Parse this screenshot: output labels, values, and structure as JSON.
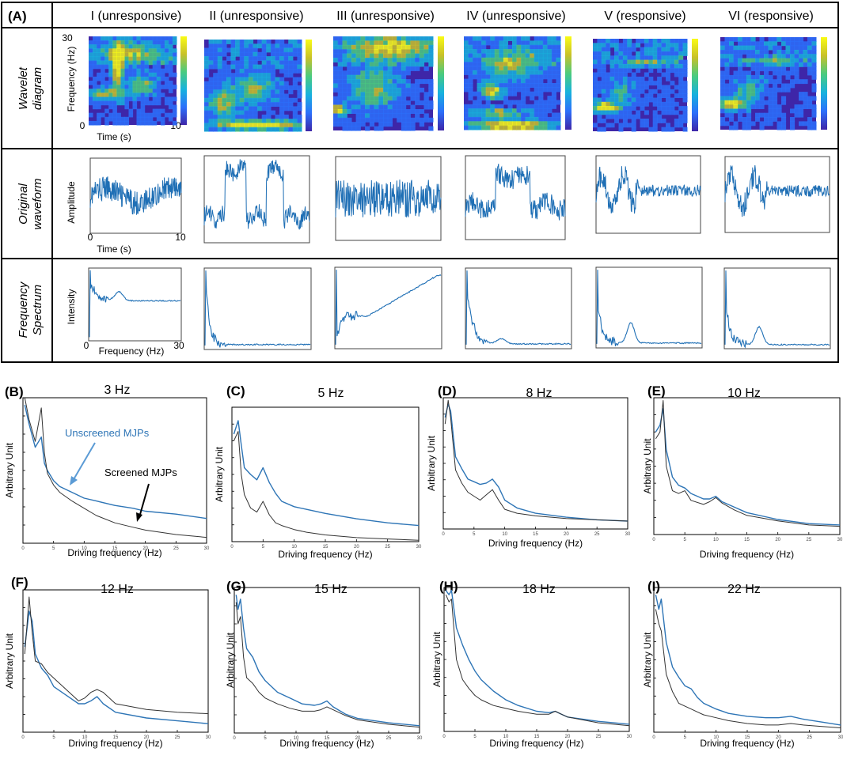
{
  "panel_a": {
    "label": "(A)",
    "columns": [
      "I (unresponsive)",
      "II (unresponsive)",
      "III (unresponsive)",
      "IV (unresponsive)",
      "V (responsive)",
      "VI (responsive)"
    ],
    "rows": [
      {
        "label_line1": "Wavelet",
        "label_line2": "diagram"
      },
      {
        "label_line1": "Original",
        "label_line2": "waveform"
      },
      {
        "label_line1": "Frequency",
        "label_line2": "Spectrum"
      }
    ],
    "wavelet_axes": {
      "ylabel": "Frequency (Hz)",
      "y_top": "30",
      "y_bottom": "0",
      "xlabel": "Time (s)",
      "x_right": "10"
    },
    "waveform_axes": {
      "ylabel": "Amplitude",
      "x_left": "0",
      "x_right": "10",
      "xlabel": "Time (s)"
    },
    "spectrum_axes": {
      "ylabel": "Intensity",
      "x_left": "0",
      "x_right": "30",
      "xlabel": "Frequency (Hz)"
    },
    "colormap": [
      "#3e26a8",
      "#2c70fb",
      "#17b2dd",
      "#4acb7f",
      "#c8c129",
      "#f9fb15"
    ]
  },
  "series_names": {
    "unscreened": "Unscreened MJPs",
    "screened": "Screened MJPs"
  },
  "series_colors": {
    "unscreened": "#2e75b6",
    "screened": "#333333"
  },
  "x_ticks": [
    "0",
    "5",
    "10",
    "15",
    "20",
    "25",
    "30"
  ],
  "chart_data": [
    {
      "type": "line",
      "panel": "(B)",
      "title": "3 Hz",
      "xlabel": "Driving frequency (Hz)",
      "ylabel": "Arbitrary Unit",
      "xlim": [
        0,
        30
      ],
      "ylim": [
        0,
        1
      ],
      "legend": "annotated arrows",
      "x": [
        0.3,
        1,
        2,
        3,
        3.5,
        4,
        5,
        6,
        8,
        10,
        12,
        15,
        18,
        20,
        25,
        30
      ],
      "series": [
        {
          "name": "Unscreened MJPs",
          "values": [
            0.95,
            0.82,
            0.66,
            0.73,
            0.55,
            0.5,
            0.43,
            0.39,
            0.35,
            0.31,
            0.29,
            0.26,
            0.24,
            0.22,
            0.2,
            0.17
          ]
        },
        {
          "name": "Screened MJPs",
          "values": [
            1.0,
            0.85,
            0.7,
            0.93,
            0.62,
            0.48,
            0.4,
            0.35,
            0.29,
            0.24,
            0.19,
            0.14,
            0.11,
            0.09,
            0.06,
            0.04
          ]
        }
      ]
    },
    {
      "type": "line",
      "panel": "(C)",
      "title": "5 Hz",
      "xlabel": "Driving frequency (Hz)",
      "ylabel": "Arbitrary Unit",
      "xlim": [
        0,
        30
      ],
      "ylim": [
        0,
        1
      ],
      "x": [
        0.3,
        1,
        1.5,
        2,
        3,
        4,
        5,
        6,
        7,
        8,
        10,
        12,
        15,
        20,
        25,
        30
      ],
      "series": [
        {
          "name": "Unscreened MJPs",
          "values": [
            0.8,
            0.9,
            0.72,
            0.55,
            0.5,
            0.46,
            0.55,
            0.44,
            0.36,
            0.3,
            0.26,
            0.24,
            0.21,
            0.17,
            0.14,
            0.12
          ]
        },
        {
          "name": "Screened MJPs",
          "values": [
            0.75,
            0.82,
            0.5,
            0.35,
            0.25,
            0.22,
            0.3,
            0.2,
            0.14,
            0.12,
            0.09,
            0.07,
            0.05,
            0.03,
            0.02,
            0.01
          ]
        }
      ]
    },
    {
      "type": "line",
      "panel": "(D)",
      "title": "8 Hz",
      "xlabel": "Driving frequency (Hz)",
      "ylabel": "Arbitrary Unit",
      "xlim": [
        0,
        30
      ],
      "ylim": [
        0,
        1
      ],
      "x": [
        0.3,
        0.8,
        1.2,
        2,
        3,
        4,
        5,
        6,
        7,
        8,
        9,
        10,
        12,
        15,
        20,
        25,
        30
      ],
      "series": [
        {
          "name": "Unscreened MJPs",
          "values": [
            0.85,
            0.95,
            0.9,
            0.55,
            0.46,
            0.38,
            0.36,
            0.34,
            0.35,
            0.38,
            0.32,
            0.22,
            0.16,
            0.12,
            0.09,
            0.07,
            0.06
          ]
        },
        {
          "name": "Screened MJPs",
          "values": [
            0.8,
            0.98,
            0.85,
            0.45,
            0.35,
            0.28,
            0.25,
            0.22,
            0.26,
            0.3,
            0.22,
            0.15,
            0.12,
            0.1,
            0.08,
            0.07,
            0.06
          ]
        }
      ]
    },
    {
      "type": "line",
      "panel": "(E)",
      "title": "10 Hz",
      "xlabel": "Driving frequency (Hz)",
      "ylabel": "Arbitrary Unit",
      "xlim": [
        0,
        30
      ],
      "ylim": [
        0,
        1
      ],
      "x": [
        0.3,
        1,
        1.5,
        2,
        3,
        4,
        5,
        6,
        8,
        9,
        10,
        11,
        13,
        15,
        20,
        25,
        30
      ],
      "series": [
        {
          "name": "Unscreened MJPs",
          "values": [
            0.75,
            0.8,
            0.92,
            0.62,
            0.42,
            0.36,
            0.34,
            0.3,
            0.26,
            0.26,
            0.28,
            0.24,
            0.2,
            0.16,
            0.11,
            0.08,
            0.07
          ]
        },
        {
          "name": "Screened MJPs",
          "values": [
            0.7,
            0.75,
            0.98,
            0.5,
            0.32,
            0.3,
            0.32,
            0.25,
            0.22,
            0.24,
            0.27,
            0.23,
            0.18,
            0.14,
            0.1,
            0.07,
            0.06
          ]
        }
      ]
    },
    {
      "type": "line",
      "panel": "(F)",
      "title": "12 Hz",
      "xlabel": "Driving frequency (Hz)",
      "ylabel": "Arbitrary Unit",
      "xlim": [
        0,
        30
      ],
      "ylim": [
        0,
        1
      ],
      "x": [
        0.3,
        1,
        1.5,
        2,
        3,
        4,
        5,
        7,
        9,
        10,
        11,
        12,
        13,
        15,
        20,
        25,
        30
      ],
      "series": [
        {
          "name": "Unscreened MJPs",
          "values": [
            0.6,
            0.85,
            0.78,
            0.55,
            0.45,
            0.4,
            0.32,
            0.26,
            0.2,
            0.2,
            0.22,
            0.25,
            0.2,
            0.14,
            0.1,
            0.08,
            0.06
          ]
        },
        {
          "name": "Screened MJPs",
          "values": [
            0.55,
            0.95,
            0.7,
            0.5,
            0.48,
            0.42,
            0.38,
            0.3,
            0.22,
            0.24,
            0.28,
            0.3,
            0.28,
            0.2,
            0.16,
            0.14,
            0.13
          ]
        }
      ]
    },
    {
      "type": "line",
      "panel": "(G)",
      "title": "15 Hz",
      "xlabel": "Driving frequency (Hz)",
      "ylabel": "Arbitrary Unit",
      "xlim": [
        0,
        30
      ],
      "ylim": [
        0,
        1
      ],
      "x": [
        0.3,
        0.6,
        1,
        1.5,
        2,
        3,
        4,
        5,
        7,
        9,
        11,
        13,
        14,
        15,
        16,
        18,
        20,
        25,
        30
      ],
      "series": [
        {
          "name": "Unscreened MJPs",
          "values": [
            0.95,
            0.85,
            0.92,
            0.72,
            0.58,
            0.52,
            0.42,
            0.36,
            0.28,
            0.24,
            0.2,
            0.19,
            0.2,
            0.22,
            0.18,
            0.13,
            0.1,
            0.07,
            0.05
          ]
        },
        {
          "name": "Screened MJPs",
          "values": [
            0.9,
            0.75,
            0.8,
            0.52,
            0.38,
            0.34,
            0.28,
            0.24,
            0.2,
            0.17,
            0.15,
            0.15,
            0.16,
            0.18,
            0.16,
            0.12,
            0.09,
            0.06,
            0.04
          ]
        }
      ]
    },
    {
      "type": "line",
      "panel": "(H)",
      "title": "18 Hz",
      "xlabel": "Driving frequency (Hz)",
      "ylabel": "Arbitrary Unit",
      "xlim": [
        0,
        30
      ],
      "ylim": [
        0,
        1
      ],
      "x": [
        0.3,
        0.8,
        1.2,
        2,
        3,
        4,
        5,
        6,
        8,
        10,
        12,
        15,
        17,
        18,
        19,
        20,
        25,
        30
      ],
      "series": [
        {
          "name": "Unscreened MJPs",
          "values": [
            0.98,
            0.95,
            0.98,
            0.72,
            0.6,
            0.5,
            0.42,
            0.36,
            0.28,
            0.22,
            0.18,
            0.14,
            0.13,
            0.14,
            0.12,
            0.1,
            0.07,
            0.05
          ]
        },
        {
          "name": "Screened MJPs",
          "values": [
            0.95,
            0.9,
            0.92,
            0.5,
            0.36,
            0.3,
            0.25,
            0.22,
            0.18,
            0.16,
            0.14,
            0.12,
            0.12,
            0.14,
            0.12,
            0.1,
            0.06,
            0.04
          ]
        }
      ]
    },
    {
      "type": "line",
      "panel": "(I)",
      "title": "22 Hz",
      "xlabel": "Driving frequency (Hz)",
      "ylabel": "Arbitrary Unit",
      "xlim": [
        0,
        30
      ],
      "ylim": [
        0,
        1
      ],
      "x": [
        0.3,
        0.8,
        1.2,
        2,
        3,
        4,
        5,
        6,
        7,
        8,
        10,
        12,
        15,
        18,
        20,
        22,
        24,
        27,
        30
      ],
      "series": [
        {
          "name": "Unscreened MJPs",
          "values": [
            0.95,
            0.85,
            0.92,
            0.62,
            0.45,
            0.38,
            0.32,
            0.3,
            0.24,
            0.2,
            0.16,
            0.13,
            0.11,
            0.1,
            0.1,
            0.11,
            0.09,
            0.07,
            0.05
          ]
        },
        {
          "name": "Screened MJPs",
          "values": [
            0.85,
            0.75,
            0.7,
            0.4,
            0.28,
            0.2,
            0.18,
            0.16,
            0.14,
            0.12,
            0.1,
            0.08,
            0.06,
            0.05,
            0.05,
            0.06,
            0.05,
            0.04,
            0.03
          ]
        }
      ]
    }
  ]
}
